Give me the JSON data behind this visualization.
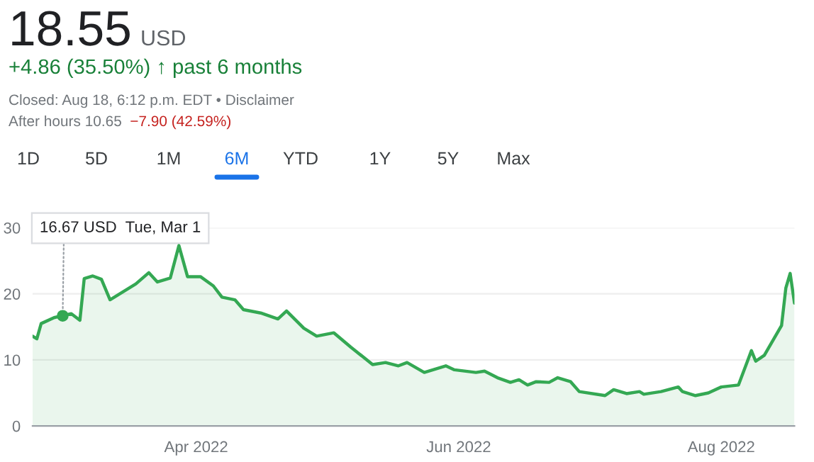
{
  "chart_data": {
    "type": "area",
    "title": "18.55",
    "subtitle": "+4.86 (35.50%) ↑ past 6 months",
    "annotations": [
      "USD",
      "Closed: Aug 18, 6:12 p.m. EDT • Disclaimer",
      "After hours 10.65",
      "−7.90 (42.59%)",
      "1D",
      "5D",
      "1M",
      "6M",
      "YTD",
      "1Y",
      "5Y",
      "Max",
      {
        "text": "16.67 USD  Tue, Mar 1",
        "x": "2022-03-01",
        "y": 16.67
      }
    ],
    "x": [
      "2022-02-22",
      "2022-02-23",
      "2022-02-24",
      "2022-02-27",
      "2022-03-01",
      "2022-03-03",
      "2022-03-05",
      "2022-03-06",
      "2022-03-08",
      "2022-03-10",
      "2022-03-12",
      "2022-03-15",
      "2022-03-18",
      "2022-03-21",
      "2022-03-23",
      "2022-03-26",
      "2022-03-28",
      "2022-03-30",
      "2022-04-02",
      "2022-04-05",
      "2022-04-07",
      "2022-04-10",
      "2022-04-12",
      "2022-04-16",
      "2022-04-20",
      "2022-04-22",
      "2022-04-26",
      "2022-04-29",
      "2022-05-03",
      "2022-05-07",
      "2022-05-12",
      "2022-05-15",
      "2022-05-18",
      "2022-05-20",
      "2022-05-24",
      "2022-05-29",
      "2022-05-31",
      "2022-06-05",
      "2022-06-07",
      "2022-06-10",
      "2022-06-13",
      "2022-06-15",
      "2022-06-17",
      "2022-06-19",
      "2022-06-22",
      "2022-06-24",
      "2022-06-27",
      "2022-06-29",
      "2022-07-05",
      "2022-07-07",
      "2022-07-10",
      "2022-07-13",
      "2022-07-14",
      "2022-07-18",
      "2022-07-22",
      "2022-07-23",
      "2022-07-26",
      "2022-07-29",
      "2022-08-01",
      "2022-08-05",
      "2022-08-08",
      "2022-08-09",
      "2022-08-11",
      "2022-08-15",
      "2022-08-16",
      "2022-08-17",
      "2022-08-18"
    ],
    "series": [
      {
        "color": "#34a853",
        "values": [
          13.6,
          13.2,
          15.5,
          16.4,
          16.7,
          17.0,
          16.0,
          22.3,
          22.7,
          22.2,
          19.1,
          20.3,
          21.5,
          23.2,
          21.8,
          22.4,
          27.3,
          22.6,
          22.6,
          21.2,
          19.5,
          19.1,
          17.6,
          17.1,
          16.2,
          17.4,
          14.8,
          13.6,
          14.1,
          11.9,
          9.3,
          9.6,
          9.1,
          9.6,
          8.1,
          9.1,
          8.5,
          8.1,
          8.3,
          7.3,
          6.6,
          7.0,
          6.2,
          6.7,
          6.6,
          7.3,
          6.7,
          5.2,
          4.6,
          5.5,
          4.9,
          5.2,
          4.8,
          5.2,
          5.9,
          5.2,
          4.6,
          5.0,
          5.9,
          6.2,
          11.4,
          9.8,
          10.7,
          15.2,
          20.9,
          23.1,
          18.6
        ]
      }
    ],
    "xlim": [
      "2022-02-22",
      "2022-08-18"
    ],
    "xticks": [
      {
        "value": "2022-04-01",
        "label": "Apr 2022"
      },
      {
        "value": "2022-06-01",
        "label": "Jun 2022"
      },
      {
        "value": "2022-08-01",
        "label": "Aug 2022"
      }
    ],
    "ylim": [
      0,
      30
    ],
    "yticks": [
      0,
      10,
      20,
      30
    ],
    "grid": "y"
  }
}
